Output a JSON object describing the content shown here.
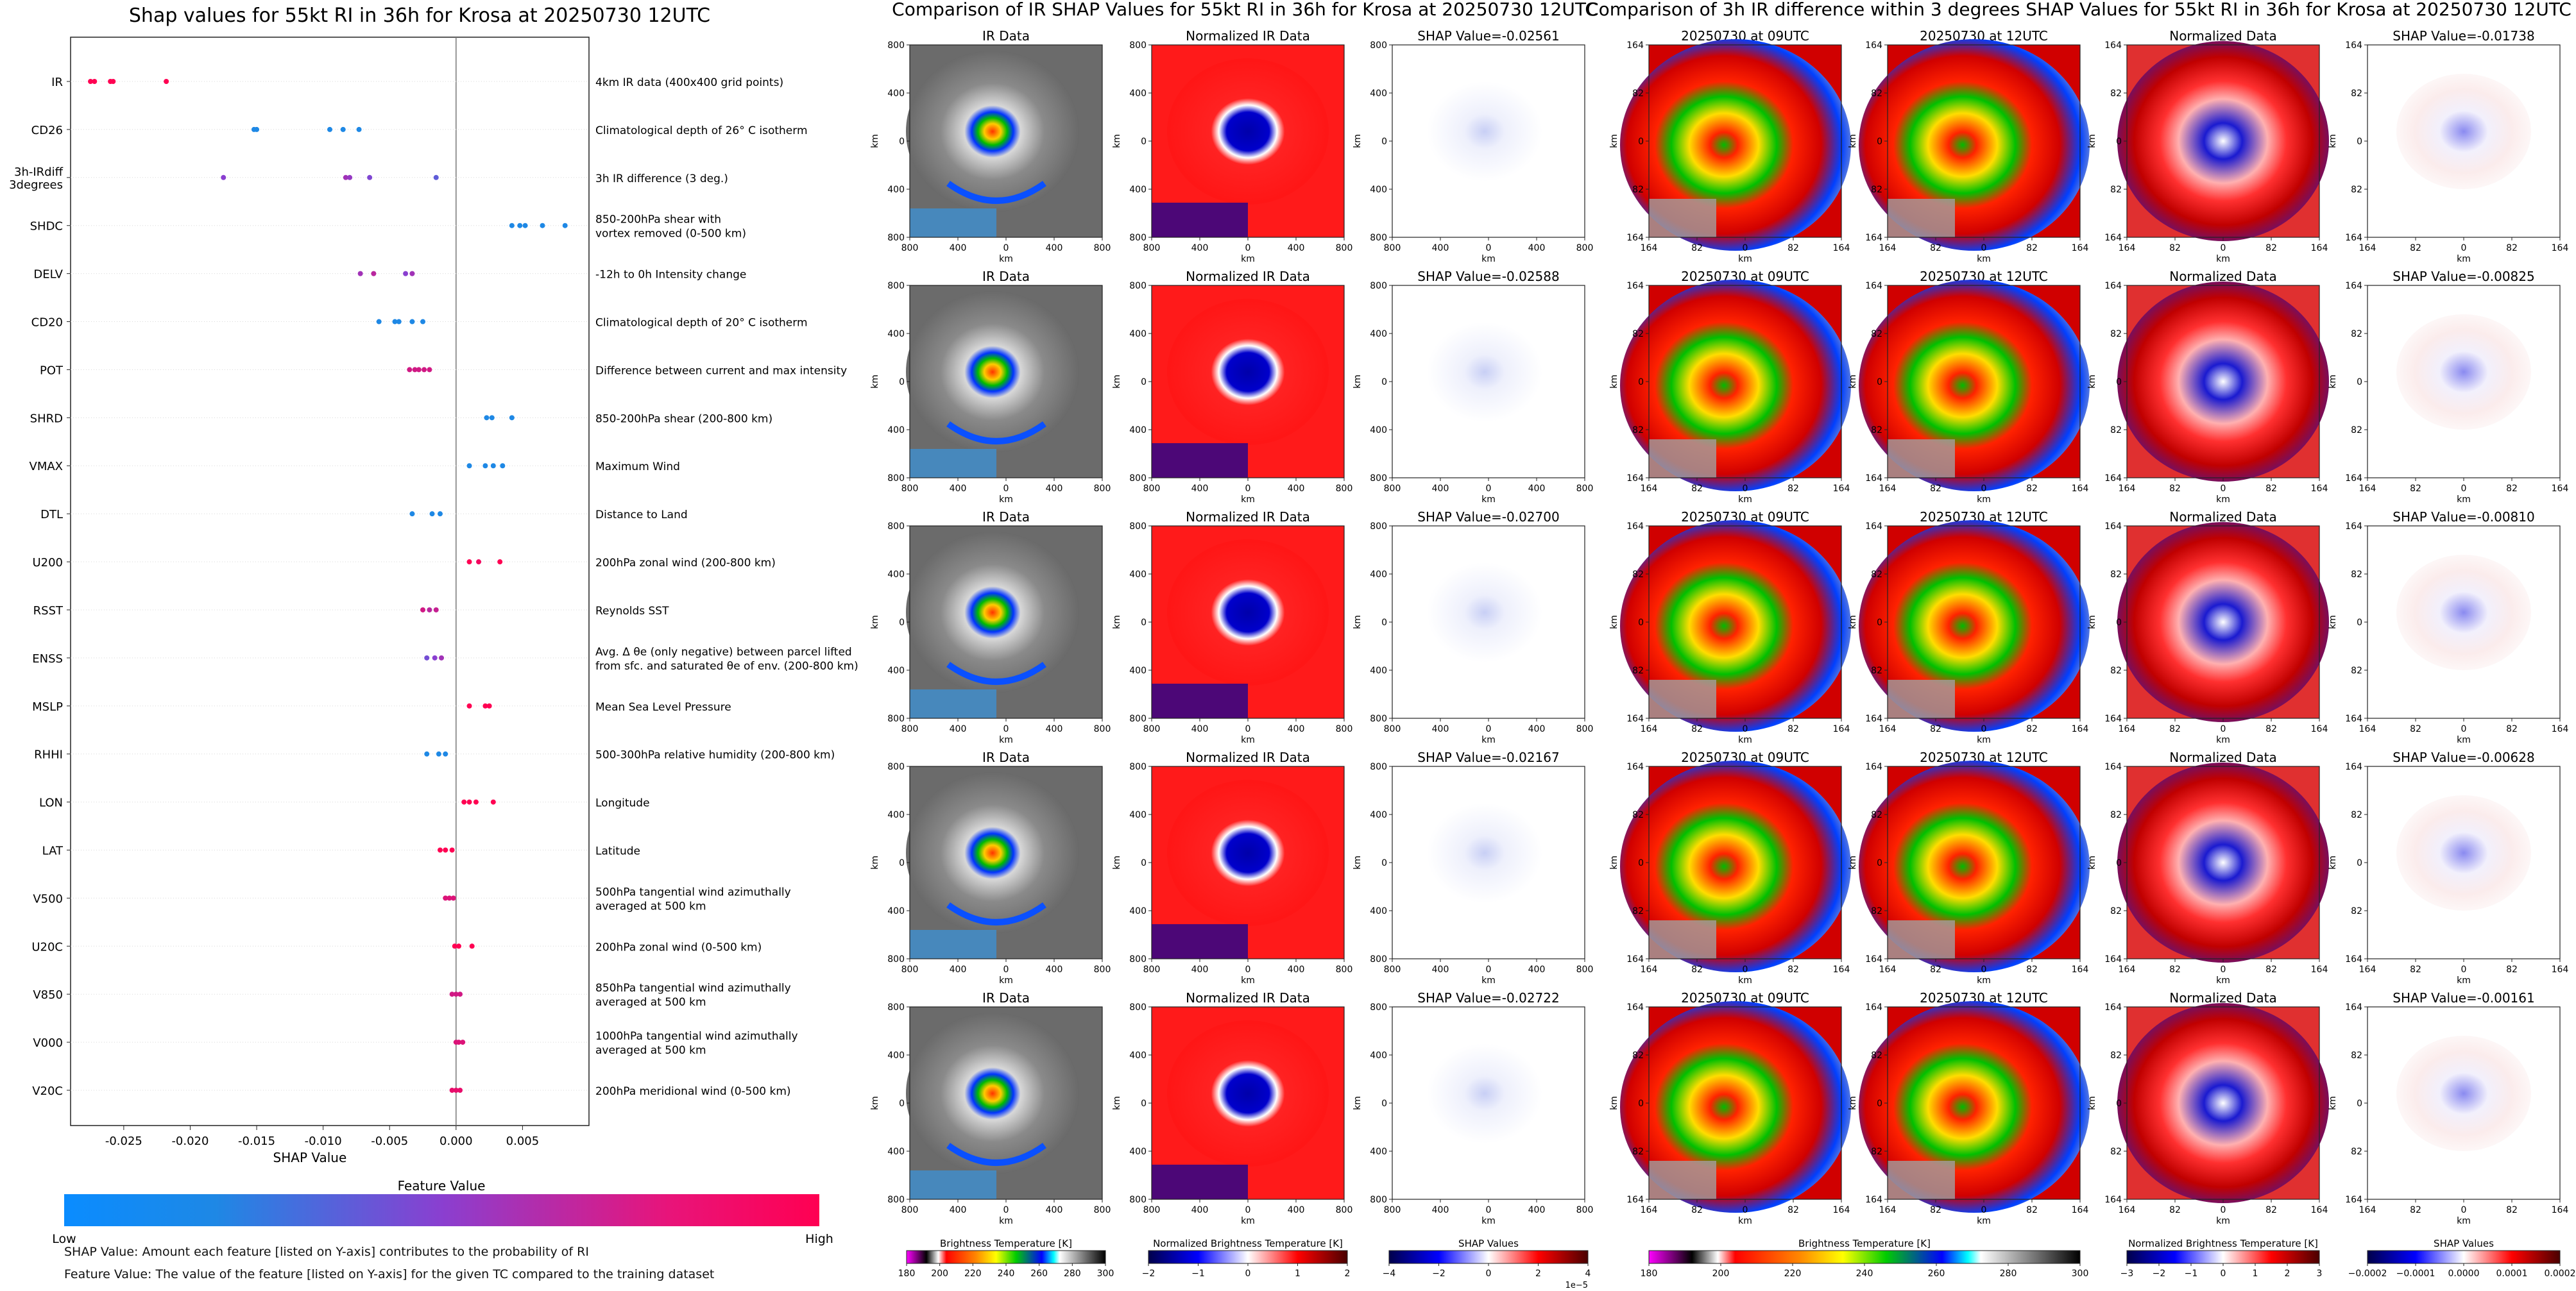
{
  "colors": {
    "feature_low": "#1e88e5",
    "feature_mid": "#7b3fd0",
    "feature_high": "#ff0052",
    "ir_gray_dark": "#505050",
    "ir_gray_light": "#c8c8c8",
    "norm_red": "#ff1a1a",
    "norm_blue": "#0a0aa0"
  },
  "left_panel": {
    "chart_data": {
      "type": "scatter",
      "title": "Shap values for 55kt RI in 36h for Krosa at 20250730 12UTC",
      "xlabel": "SHAP Value",
      "xlim": [
        -0.029,
        0.01
      ],
      "xticks": [
        "-0.025",
        "-0.020",
        "-0.015",
        "-0.010",
        "-0.005",
        "0.000",
        "0.005"
      ],
      "xtick_values": [
        -0.025,
        -0.02,
        -0.015,
        -0.01,
        -0.005,
        0.0,
        0.005
      ],
      "zero_line": 0.0,
      "features": [
        {
          "name": "IR",
          "desc": "4km IR data (400x400 grid points)",
          "points": [
            -0.0275,
            -0.0272,
            -0.026,
            -0.0258,
            -0.0218
          ],
          "colors": [
            1,
            1,
            1,
            1,
            1
          ]
        },
        {
          "name": "CD26",
          "desc": "Climatological depth of 26° C isotherm",
          "points": [
            -0.0152,
            -0.015,
            -0.0095,
            -0.0085,
            -0.0073
          ],
          "colors": [
            0,
            0,
            0,
            0,
            0
          ]
        },
        {
          "name": "3h-IRdiff\n3degrees",
          "desc": "3h IR difference (3 deg.)",
          "points": [
            -0.0175,
            -0.0083,
            -0.008,
            -0.0065,
            -0.0015
          ],
          "colors": [
            0.5,
            0.6,
            0.55,
            0.45,
            0.3
          ]
        },
        {
          "name": "SHDC",
          "desc": "850-200hPa shear with\nvortex removed (0-500 km)",
          "points": [
            0.0042,
            0.0048,
            0.0052,
            0.0065,
            0.0082
          ],
          "colors": [
            0,
            0,
            0,
            0,
            0
          ]
        },
        {
          "name": "DELV",
          "desc": "-12h to 0h Intensity change",
          "points": [
            -0.0072,
            -0.0062,
            -0.0038,
            -0.0033
          ],
          "colors": [
            0.6,
            0.7,
            0.5,
            0.6
          ]
        },
        {
          "name": "CD20",
          "desc": "Climatological depth of 20° C isotherm",
          "points": [
            -0.0058,
            -0.0046,
            -0.0043,
            -0.0033,
            -0.0025
          ],
          "colors": [
            0,
            0,
            0,
            0,
            0
          ]
        },
        {
          "name": "POT",
          "desc": "Difference between current and max intensity",
          "points": [
            -0.0035,
            -0.0031,
            -0.0028,
            -0.0024,
            -0.002
          ],
          "colors": [
            0.8,
            0.8,
            0.8,
            0.8,
            0.8
          ]
        },
        {
          "name": "SHRD",
          "desc": "850-200hPa shear (200-800 km)",
          "points": [
            0.0023,
            0.0027,
            0.0042
          ],
          "colors": [
            0,
            0,
            0
          ]
        },
        {
          "name": "VMAX",
          "desc": "Maximum Wind",
          "points": [
            0.001,
            0.0022,
            0.0028,
            0.0035
          ],
          "colors": [
            0,
            0,
            0,
            0
          ]
        },
        {
          "name": "DTL",
          "desc": "Distance to Land",
          "points": [
            -0.0033,
            -0.0018,
            -0.0012
          ],
          "colors": [
            0,
            0,
            0
          ]
        },
        {
          "name": "U200",
          "desc": "200hPa zonal wind (200-800 km)",
          "points": [
            0.001,
            0.0017,
            0.0033
          ],
          "colors": [
            1,
            0.95,
            1
          ]
        },
        {
          "name": "RSST",
          "desc": "Reynolds SST",
          "points": [
            -0.0025,
            -0.002,
            -0.0015
          ],
          "colors": [
            0.8,
            0.7,
            0.75
          ]
        },
        {
          "name": "ENSS",
          "desc": "Avg. Δ θe (only negative) between parcel lifted\nfrom sfc. and saturated θe of env. (200-800 km)",
          "points": [
            -0.0022,
            -0.0016,
            -0.0011
          ],
          "colors": [
            0.4,
            0.5,
            0.6
          ]
        },
        {
          "name": "MSLP",
          "desc": "Mean Sea Level Pressure",
          "points": [
            0.001,
            0.0022,
            0.0025
          ],
          "colors": [
            1,
            1,
            1
          ]
        },
        {
          "name": "RHHI",
          "desc": "500-300hPa relative humidity (200-800 km)",
          "points": [
            -0.0022,
            -0.0013,
            -0.0008
          ],
          "colors": [
            0,
            0,
            0
          ]
        },
        {
          "name": "LON",
          "desc": "Longitude",
          "points": [
            0.0006,
            0.001,
            0.0015,
            0.0028
          ],
          "colors": [
            1,
            1,
            1,
            1
          ]
        },
        {
          "name": "LAT",
          "desc": "Latitude",
          "points": [
            -0.0012,
            -0.0008,
            -0.0003
          ],
          "colors": [
            1,
            1,
            1
          ]
        },
        {
          "name": "V500",
          "desc": "500hPa tangential wind azimuthally\naveraged at 500 km",
          "points": [
            -0.0008,
            -0.0005,
            -0.0002
          ],
          "colors": [
            0.85,
            0.85,
            0.85
          ]
        },
        {
          "name": "U20C",
          "desc": "200hPa zonal wind (0-500 km)",
          "points": [
            -0.0001,
            0.0002,
            0.0012
          ],
          "colors": [
            1,
            1,
            1
          ]
        },
        {
          "name": "V850",
          "desc": "850hPa tangential wind azimuthally\naveraged at 500 km",
          "points": [
            -0.0003,
            0.0,
            0.0003
          ],
          "colors": [
            0.8,
            0.8,
            0.8
          ]
        },
        {
          "name": "V000",
          "desc": "1000hPa tangential wind azimuthally\naveraged at 500 km",
          "points": [
            0.0,
            0.0002,
            0.0005
          ],
          "colors": [
            0.85,
            0.85,
            0.85
          ]
        },
        {
          "name": "V20C",
          "desc": "200hPa meridional wind (0-500 km)",
          "points": [
            -0.0003,
            0.0,
            0.0003
          ],
          "colors": [
            0.9,
            0.9,
            0.9
          ]
        }
      ]
    },
    "colorbar": {
      "title": "Feature Value",
      "low": "Low",
      "high": "High"
    },
    "notes": [
      "SHAP Value: Amount each feature [listed on Y-axis] contributes to the probability of RI",
      "Feature Value: The value of the feature [listed on Y-axis] for the given TC compared to the training dataset"
    ]
  },
  "middle_panel": {
    "title": "Comparison of IR SHAP Values for 55kt RI in 36h for Krosa at 20250730 12UTC",
    "columns": [
      "IR Data",
      "Normalized IR Data"
    ],
    "shap_titles": [
      "SHAP Value=-0.02561",
      "SHAP Value=-0.02588",
      "SHAP Value=-0.02700",
      "SHAP Value=-0.02167",
      "SHAP Value=-0.02722"
    ],
    "axis_ticks_x": [
      "800",
      "400",
      "0",
      "400",
      "800"
    ],
    "axis_ticks_y": [
      "800",
      "400",
      "0",
      "400",
      "800"
    ],
    "axis_unit": "km",
    "colorbars": [
      {
        "title": "Brightness Temperature [K]",
        "ticks": [
          "180",
          "200",
          "220",
          "240",
          "260",
          "280",
          "300"
        ]
      },
      {
        "title": "Normalized Brightness Temperature [K]",
        "ticks": [
          "−2",
          "−1",
          "0",
          "1",
          "2"
        ]
      },
      {
        "title": "SHAP Values",
        "ticks": [
          "−4",
          "−2",
          "0",
          "2",
          "4"
        ],
        "offset": "1e−5"
      }
    ]
  },
  "right_panel": {
    "title": "Comparison of 3h IR difference within 3 degrees SHAP Values for 55kt RI in 36h for Krosa at 20250730 12UTC",
    "columns": [
      "20250730 at 09UTC",
      "20250730 at 12UTC",
      "Normalized Data"
    ],
    "shap_titles": [
      "SHAP Value=-0.01738",
      "SHAP Value=-0.00825",
      "SHAP Value=-0.00810",
      "SHAP Value=-0.00628",
      "SHAP Value=-0.00161"
    ],
    "axis_ticks_x": [
      "164",
      "82",
      "0",
      "82",
      "164"
    ],
    "axis_ticks_y": [
      "164",
      "82",
      "0",
      "82",
      "164"
    ],
    "axis_unit": "km",
    "colorbars": [
      {
        "title": "Brightness Temperature [K]",
        "ticks": [
          "180",
          "200",
          "220",
          "240",
          "260",
          "280",
          "300"
        ]
      },
      {
        "title": "Normalized Brightness Temperature [K]",
        "ticks": [
          "−3",
          "−2",
          "−1",
          "0",
          "1",
          "2",
          "3"
        ]
      },
      {
        "title": "SHAP Values",
        "ticks": [
          "−0.0002",
          "−0.0001",
          "0.0000",
          "0.0001",
          "0.0002"
        ]
      }
    ]
  }
}
